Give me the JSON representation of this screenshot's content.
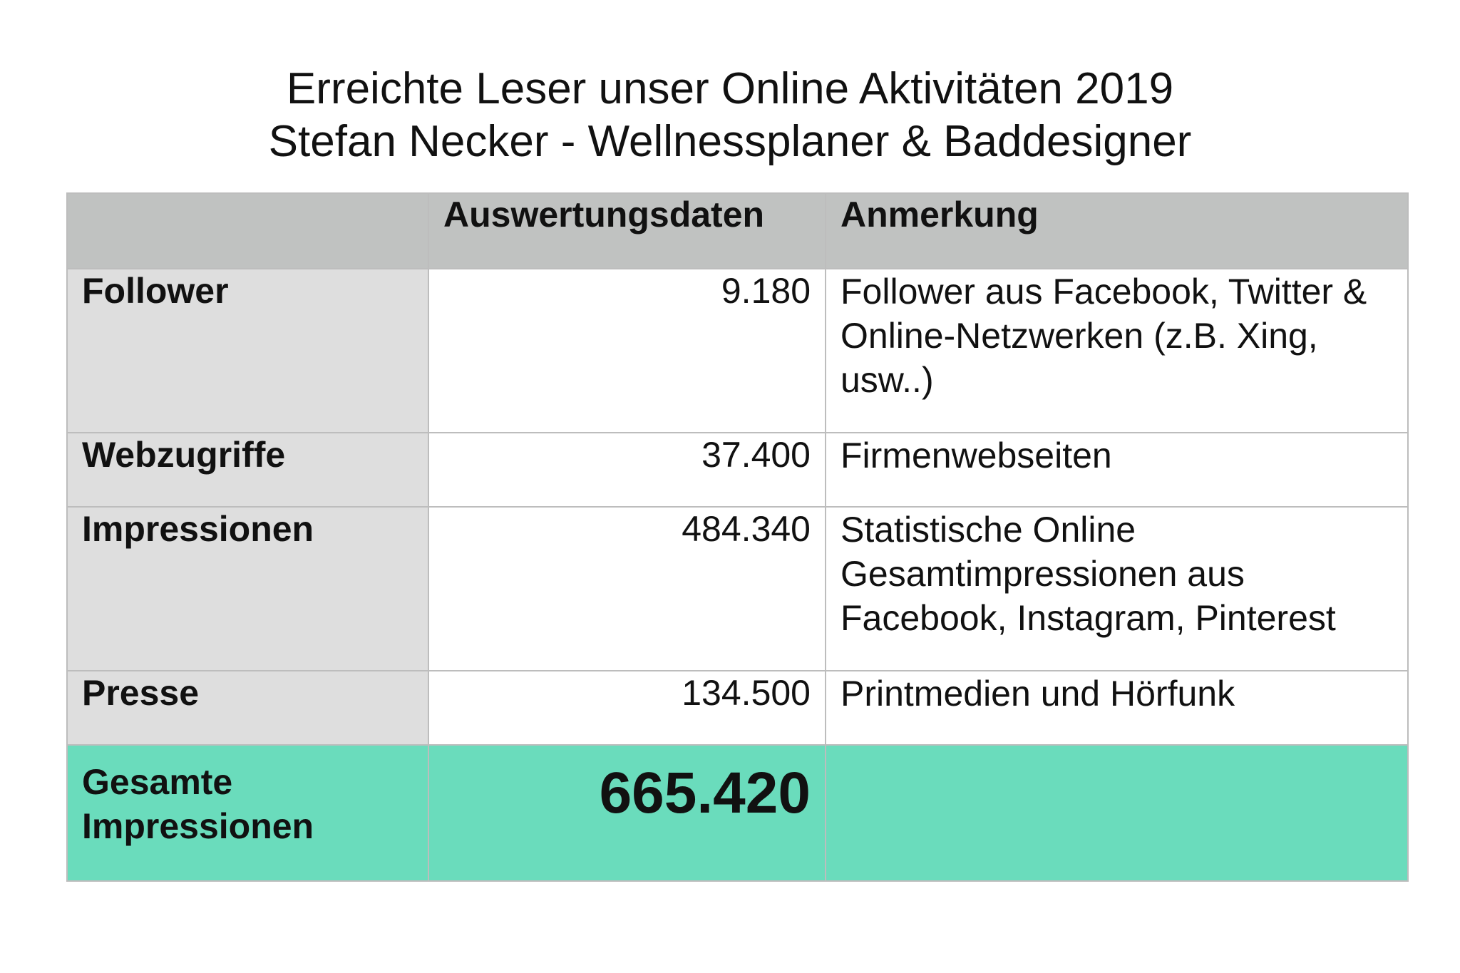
{
  "title": {
    "line1": "Erreichte Leser unser Online Aktivitäten 2019",
    "line2": "Stefan Necker - Wellnessplaner & Baddesigner"
  },
  "table": {
    "headers": [
      "",
      "Auswertungsdaten",
      "Anmerkung"
    ],
    "rows": [
      {
        "label": "Follower",
        "value": "9.180",
        "note": "Follower aus Facebook, Twitter & Online-Netzwerken (z.B. Xing, usw..)"
      },
      {
        "label": "Webzugriffe",
        "value": "37.400",
        "note": "Firmenwebseiten"
      },
      {
        "label": "Impressionen",
        "value": "484.340",
        "note": "Statistische Online Gesamtimpressionen aus Facebook, Instagram, Pinterest"
      },
      {
        "label": "Presse",
        "value": "134.500",
        "note": "Printmedien und Hörfunk"
      }
    ],
    "total": {
      "label": "Gesamte Impressionen",
      "value": "665.420",
      "note": ""
    }
  },
  "colors": {
    "header_bg": "#c0c2c1",
    "label_bg": "#dedede",
    "total_bg": "#6adcbc"
  }
}
